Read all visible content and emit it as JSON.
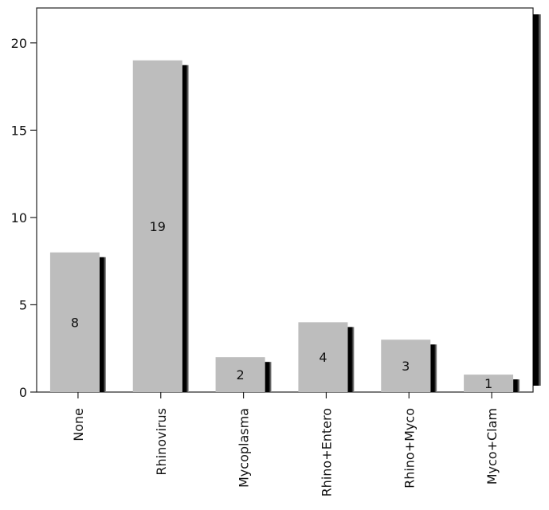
{
  "chart_data": {
    "type": "bar",
    "categories": [
      "None",
      "Rhinovirus",
      "Mycoplasma",
      "Rhino+Entero",
      "Rhino+Myco",
      "Myco+Clam"
    ],
    "values": [
      8,
      19,
      2,
      4,
      3,
      1
    ],
    "data_labels": [
      "8",
      "19",
      "2",
      "4",
      "3",
      "1"
    ],
    "yticks": [
      0,
      5,
      10,
      15,
      20
    ],
    "ylim": [
      0,
      22
    ],
    "title": "",
    "xlabel": "",
    "ylabel": "",
    "grid": false,
    "bar_color": "#bdbdbd",
    "shadow_color": "#000000"
  }
}
